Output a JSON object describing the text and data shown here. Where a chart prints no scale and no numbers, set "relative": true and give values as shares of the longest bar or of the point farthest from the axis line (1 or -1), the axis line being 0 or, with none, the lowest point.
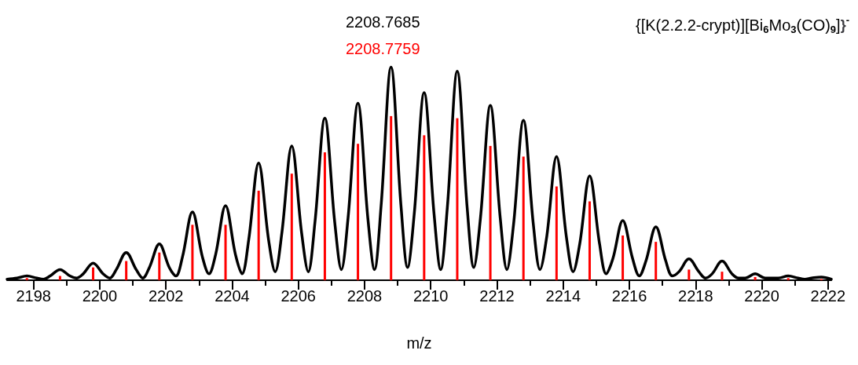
{
  "chart_data": {
    "type": "line",
    "title": "{[K(2.2.2-crypt)][Bi$_{6}$Mo$_{3}$(CO)$_{9}$]}$^{-}$",
    "xlabel": "m/z",
    "annotations": [
      "2208.7685",
      "2208.7759"
    ],
    "relative": true,
    "xlim": [
      2197.2,
      2222.1
    ],
    "xticks": [
      2198,
      {
        "value": 2199,
        "label": null
      },
      2200,
      {
        "value": 2201,
        "label": null
      },
      2202,
      {
        "value": 2203,
        "label": null
      },
      2204,
      {
        "value": 2205,
        "label": null
      },
      2206,
      {
        "value": 2207,
        "label": null
      },
      2208,
      {
        "value": 2209,
        "label": null
      },
      2210,
      {
        "value": 2211,
        "label": null
      },
      2212,
      {
        "value": 2213,
        "label": null
      },
      2214,
      {
        "value": 2215,
        "label": null
      },
      2216,
      {
        "value": 2217,
        "label": null
      },
      2218,
      {
        "value": 2219,
        "label": null
      },
      2220,
      {
        "value": 2221,
        "label": null
      },
      2222
    ],
    "grid": false,
    "marker": "none",
    "line_style": "solid",
    "series": [
      {
        "color": "#000000",
        "x": [
          2197.2,
          2197.5,
          2197.8,
          2198.1,
          2198.3,
          2198.5,
          2198.8,
          2199.1,
          2199.3,
          2199.5,
          2199.8,
          2200.1,
          2200.3,
          2200.5,
          2200.8,
          2201.1,
          2201.3,
          2201.5,
          2201.8,
          2202.1,
          2202.3,
          2202.5,
          2202.8,
          2203.1,
          2203.3,
          2203.5,
          2203.8,
          2204.1,
          2204.3,
          2204.5,
          2204.8,
          2205.1,
          2205.3,
          2205.5,
          2205.8,
          2206.1,
          2206.3,
          2206.5,
          2206.8,
          2207.1,
          2207.3,
          2207.5,
          2207.8,
          2208.1,
          2208.3,
          2208.5,
          2208.8,
          2209.1,
          2209.3,
          2209.5,
          2209.8,
          2210.1,
          2210.3,
          2210.5,
          2210.8,
          2211.1,
          2211.3,
          2211.5,
          2211.8,
          2212.1,
          2212.3,
          2212.5,
          2212.8,
          2213.1,
          2213.3,
          2213.5,
          2213.8,
          2214.1,
          2214.3,
          2214.5,
          2214.8,
          2215.1,
          2215.3,
          2215.5,
          2215.8,
          2216.1,
          2216.3,
          2216.5,
          2216.8,
          2217.1,
          2217.3,
          2217.5,
          2217.8,
          2218.1,
          2218.3,
          2218.5,
          2218.8,
          2219.1,
          2219.3,
          2219.5,
          2219.8,
          2220.1,
          2220.3,
          2220.5,
          2220.8,
          2221.1,
          2221.3,
          2221.5,
          2221.8,
          2222.1
        ],
        "values": [
          0.005,
          0.01,
          0.02,
          0.01,
          0.005,
          0.02,
          0.05,
          0.02,
          0.01,
          0.03,
          0.08,
          0.03,
          0.01,
          0.05,
          0.13,
          0.05,
          0.01,
          0.06,
          0.17,
          0.06,
          0.02,
          0.11,
          0.32,
          0.11,
          0.03,
          0.12,
          0.35,
          0.12,
          0.03,
          0.19,
          0.55,
          0.19,
          0.04,
          0.22,
          0.63,
          0.22,
          0.04,
          0.27,
          0.76,
          0.27,
          0.05,
          0.29,
          0.83,
          0.29,
          0.05,
          0.35,
          1,
          0.35,
          0.06,
          0.31,
          0.88,
          0.31,
          0.05,
          0.34,
          0.98,
          0.34,
          0.06,
          0.29,
          0.82,
          0.29,
          0.05,
          0.26,
          0.75,
          0.26,
          0.05,
          0.2,
          0.58,
          0.2,
          0.04,
          0.17,
          0.49,
          0.17,
          0.03,
          0.1,
          0.28,
          0.1,
          0.02,
          0.09,
          0.25,
          0.09,
          0.02,
          0.04,
          0.1,
          0.04,
          0.01,
          0.03,
          0.09,
          0.03,
          0.01,
          0.01,
          0.03,
          0.01,
          0.01,
          0.01,
          0.02,
          0.01,
          0.005,
          0.01,
          0.015,
          0.005
        ]
      },
      {
        "type": "bar",
        "color": "#ff0000",
        "x": [
          2197.8,
          2198.8,
          2199.8,
          2200.8,
          2201.8,
          2202.8,
          2203.8,
          2204.8,
          2205.8,
          2206.8,
          2207.8,
          2208.8,
          2209.8,
          2210.8,
          2211.8,
          2212.8,
          2213.8,
          2214.8,
          2215.8,
          2216.8,
          2217.8,
          2218.8,
          2219.8,
          2220.8,
          2221.8
        ],
        "values": [
          0.01,
          0.02,
          0.06,
          0.09,
          0.13,
          0.26,
          0.26,
          0.42,
          0.5,
          0.6,
          0.64,
          0.77,
          0.68,
          0.76,
          0.63,
          0.58,
          0.44,
          0.37,
          0.21,
          0.18,
          0.05,
          0.04,
          0.015,
          0.01,
          0.005
        ]
      }
    ]
  }
}
